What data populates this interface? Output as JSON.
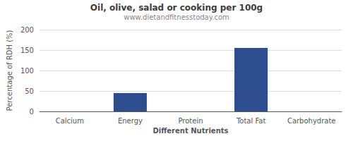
{
  "chart_data": {
    "type": "bar",
    "title": "Oil, olive, salad or cooking per 100g",
    "subtitle": "www.dietandfitnesstoday.com",
    "xlabel": "Different Nutrients",
    "ylabel": "Percentage of RDH (%)",
    "categories": [
      "Calcium",
      "Energy",
      "Protein",
      "Total Fat",
      "Carbohydrate"
    ],
    "values": [
      0,
      45,
      0,
      155,
      0
    ],
    "color": "#2e4d8e",
    "ylim": [
      0,
      200
    ],
    "yticks": [
      0,
      50,
      100,
      150,
      200
    ],
    "grid": true
  }
}
